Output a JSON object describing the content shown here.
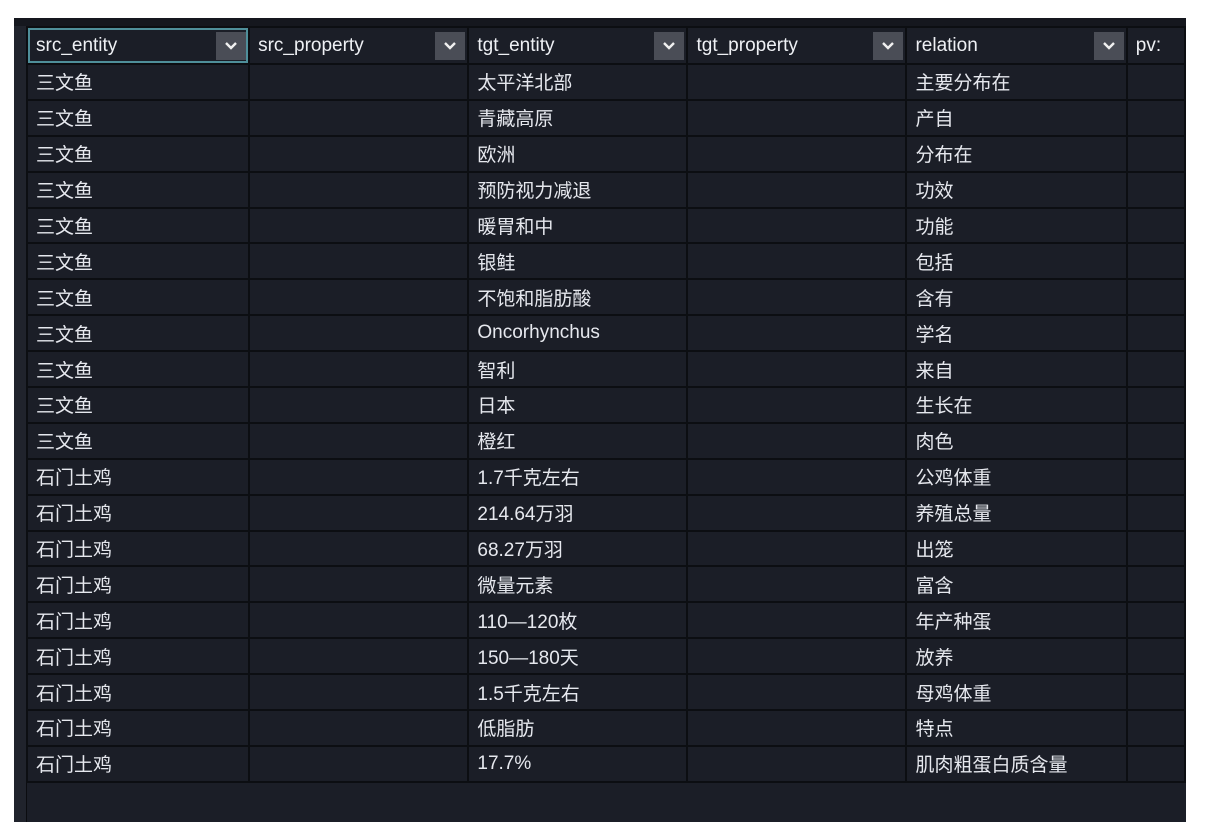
{
  "columns": [
    {
      "label": "src_entity",
      "icon": "chevron-down-icon"
    },
    {
      "label": "src_property",
      "icon": "chevron-down-icon"
    },
    {
      "label": "tgt_entity",
      "icon": "chevron-down-icon"
    },
    {
      "label": "tgt_property",
      "icon": "chevron-down-icon"
    },
    {
      "label": "relation",
      "icon": "chevron-down-icon"
    },
    {
      "label": "pv:"
    }
  ],
  "rows": [
    [
      "三文鱼",
      "",
      "太平洋北部",
      "",
      "主要分布在",
      ""
    ],
    [
      "三文鱼",
      "",
      "青藏高原",
      "",
      "产自",
      ""
    ],
    [
      "三文鱼",
      "",
      "欧洲",
      "",
      "分布在",
      ""
    ],
    [
      "三文鱼",
      "",
      "预防视力减退",
      "",
      "功效",
      ""
    ],
    [
      "三文鱼",
      "",
      "暖胃和中",
      "",
      "功能",
      ""
    ],
    [
      "三文鱼",
      "",
      "银鲑",
      "",
      "包括",
      ""
    ],
    [
      "三文鱼",
      "",
      "不饱和脂肪酸",
      "",
      "含有",
      ""
    ],
    [
      "三文鱼",
      "",
      "Oncorhynchus",
      "",
      "学名",
      ""
    ],
    [
      "三文鱼",
      "",
      "智利",
      "",
      "来自",
      ""
    ],
    [
      "三文鱼",
      "",
      "日本",
      "",
      "生长在",
      ""
    ],
    [
      "三文鱼",
      "",
      "橙红",
      "",
      "肉色",
      ""
    ],
    [
      "石门土鸡",
      "",
      "1.7千克左右",
      "",
      "公鸡体重",
      ""
    ],
    [
      "石门土鸡",
      "",
      "214.64万羽",
      "",
      "养殖总量",
      ""
    ],
    [
      "石门土鸡",
      "",
      "68.27万羽",
      "",
      "出笼",
      ""
    ],
    [
      "石门土鸡",
      "",
      "微量元素",
      "",
      "富含",
      ""
    ],
    [
      "石门土鸡",
      "",
      "110—120枚",
      "",
      "年产种蛋",
      ""
    ],
    [
      "石门土鸡",
      "",
      "150—180天",
      "",
      "放养",
      ""
    ],
    [
      "石门土鸡",
      "",
      "1.5千克左右",
      "",
      "母鸡体重",
      ""
    ],
    [
      "石门土鸡",
      "",
      "低脂肪",
      "",
      "特点",
      ""
    ],
    [
      "石门土鸡",
      "",
      "17.7%",
      "",
      "肌肉粗蛋白质含量",
      ""
    ]
  ],
  "colors": {
    "background": "#1b1e27",
    "grid": "#0c0e12",
    "text": "#e6e8ee",
    "active_cell": "#4f8f9a"
  }
}
